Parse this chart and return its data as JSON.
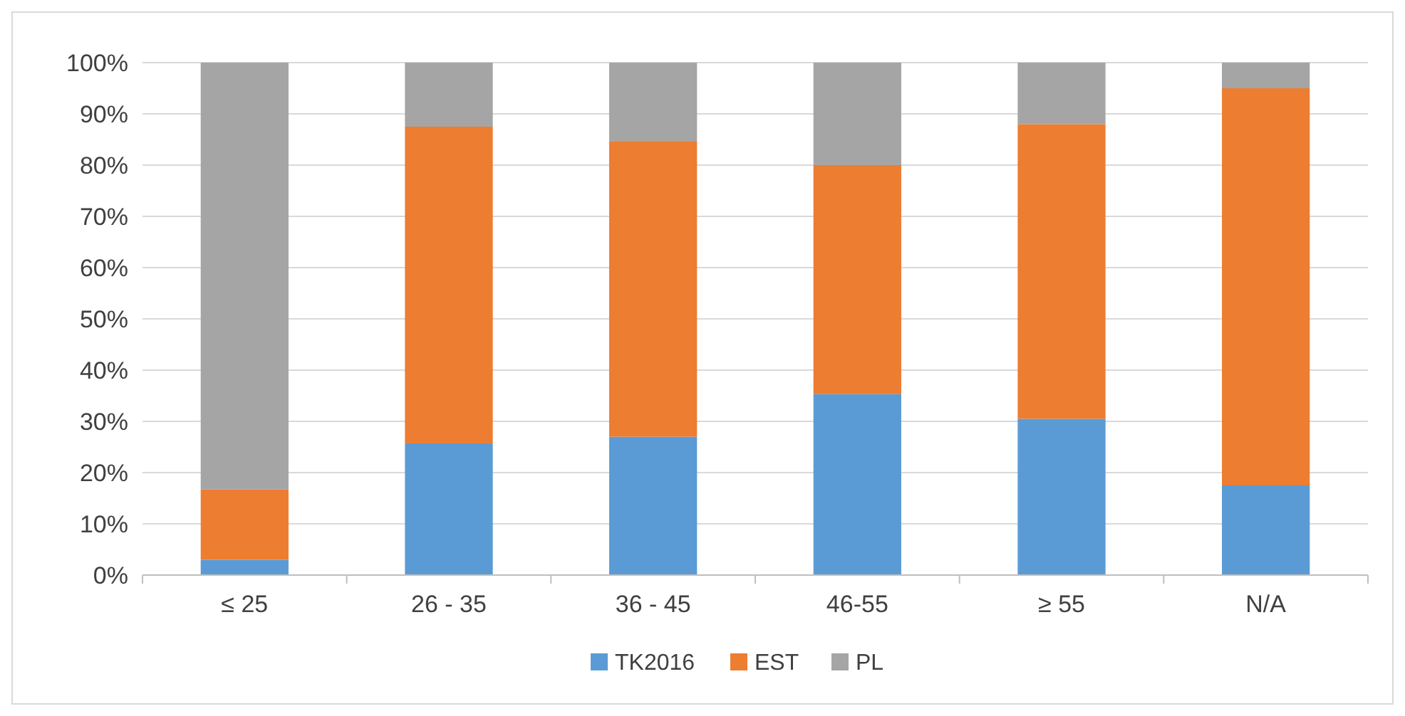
{
  "chart_data": {
    "type": "bar",
    "stacked": true,
    "categories": [
      "≤ 25",
      "26 - 35",
      "36 - 45",
      "46-55",
      "≥ 55",
      "N/A"
    ],
    "series": [
      {
        "name": "TK2016",
        "color": "#5b9bd5",
        "values": [
          3,
          25.7,
          27,
          35.3,
          30.5,
          17.5
        ]
      },
      {
        "name": "EST",
        "color": "#ed7d31",
        "values": [
          13.7,
          61.8,
          57.7,
          44.7,
          57.5,
          77.5
        ]
      },
      {
        "name": "PL",
        "color": "#a5a5a5",
        "values": [
          83.3,
          12.5,
          15.3,
          20,
          12,
          5
        ]
      }
    ],
    "ylim": [
      0,
      100
    ],
    "yticks": [
      {
        "value": 0,
        "label": "0%"
      },
      {
        "value": 10,
        "label": "10%"
      },
      {
        "value": 20,
        "label": "20%"
      },
      {
        "value": 30,
        "label": "30%"
      },
      {
        "value": 40,
        "label": "40%"
      },
      {
        "value": 50,
        "label": "50%"
      },
      {
        "value": 60,
        "label": "60%"
      },
      {
        "value": 70,
        "label": "70%"
      },
      {
        "value": 80,
        "label": "80%"
      },
      {
        "value": 90,
        "label": "90%"
      },
      {
        "value": 100,
        "label": "100%"
      }
    ],
    "grid": "y",
    "legend": "bottom"
  }
}
